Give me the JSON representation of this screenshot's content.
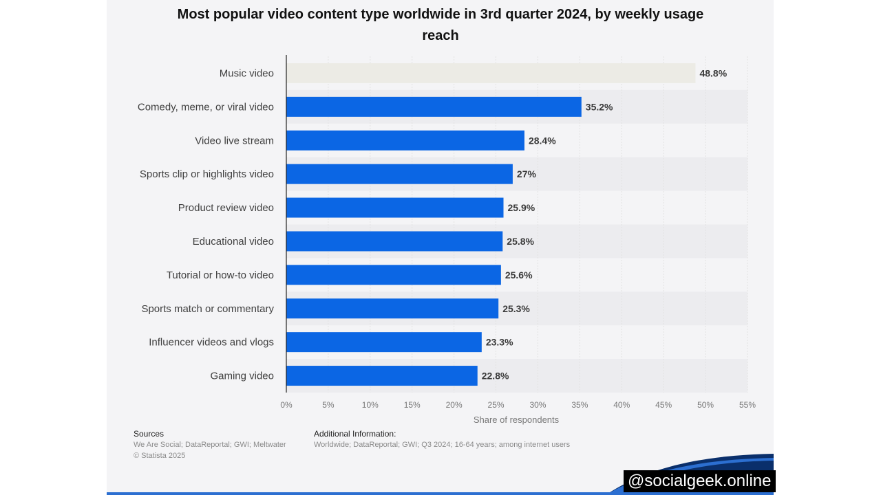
{
  "chart_data": {
    "type": "bar",
    "orientation": "horizontal",
    "title": "Most popular video content type worldwide in 3rd quarter 2024, by weekly usage reach",
    "xlabel": "Share of respondents",
    "ylabel": "",
    "xlim": [
      0,
      55
    ],
    "ticks": [
      "0%",
      "5%",
      "10%",
      "15%",
      "20%",
      "25%",
      "30%",
      "35%",
      "40%",
      "45%",
      "50%",
      "55%"
    ],
    "grid": true,
    "categories": [
      "Music video",
      "Comedy, meme, or viral video",
      "Video live stream",
      "Sports clip or highlights video",
      "Product review video",
      "Educational video",
      "Tutorial or how-to video",
      "Sports match or commentary",
      "Influencer videos and vlogs",
      "Gaming video"
    ],
    "values": [
      48.8,
      35.2,
      28.4,
      27,
      25.9,
      25.8,
      25.6,
      25.3,
      23.3,
      22.8
    ],
    "value_labels": [
      "48.8%",
      "35.2%",
      "28.4%",
      "27%",
      "25.9%",
      "25.8%",
      "25.6%",
      "25.3%",
      "23.3%",
      "22.8%"
    ],
    "colors": {
      "bar": "#0b66e4",
      "highlight_bar": "#ecebe5",
      "grid": "#e2e2e2"
    },
    "highlight_index": 0
  },
  "footer": {
    "sources_heading": "Sources",
    "sources_text": "We Are Social; DataReportal; GWI; Meltwater",
    "copyright": "© Statista 2025",
    "additional_heading": "Additional Information:",
    "additional_text": "Worldwide; DataReportal; GWI; Q3 2024; 16-64 years; among internet users"
  },
  "watermark": "@socialgeek.online"
}
